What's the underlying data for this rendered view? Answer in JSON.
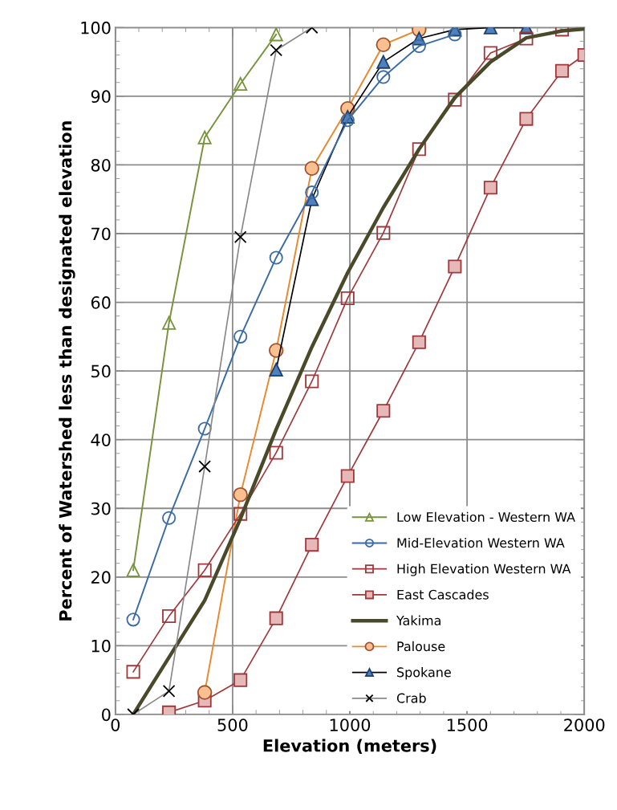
{
  "chart_data": {
    "type": "line",
    "xlabel": "Elevation (meters)",
    "ylabel": "Percent of Watershed less than designated elevation",
    "xlim": [
      0,
      2000
    ],
    "xticks": [
      0,
      500,
      1000,
      1500,
      2000
    ],
    "ylim": [
      0,
      100
    ],
    "yticks": [
      0,
      10,
      20,
      30,
      40,
      50,
      60,
      70,
      80,
      90,
      100
    ],
    "grid": true,
    "legend": "bottom right",
    "series": [
      {
        "name": "Low Elevation - Western WA",
        "color": "#77933c",
        "marker": "triangle",
        "x": [
          76.2,
          228.6,
          381,
          533.4,
          685.8
        ],
        "values": [
          21,
          57,
          84,
          91.8,
          99
        ]
      },
      {
        "name": "Mid-Elevation Western WA",
        "color": "#3a6ba5",
        "marker": "circle",
        "x": [
          76.2,
          228.6,
          381,
          533.4,
          685.8,
          838.2,
          990.6,
          1143,
          1295.4,
          1447.8
        ],
        "values": [
          13.8,
          28.6,
          41.6,
          55,
          66.5,
          76,
          86.5,
          92.8,
          97.3,
          99
        ]
      },
      {
        "name": "High Elevation Western WA",
        "color": "#a0373a",
        "marker": "square",
        "x": [
          76.2,
          228.6,
          381,
          533.4,
          685.8,
          838.2,
          990.6,
          1143,
          1295.4,
          1447.8,
          1600.2,
          1752.6,
          1905
        ],
        "values": [
          6.2,
          14.3,
          21,
          29.2,
          38.1,
          48.5,
          60.6,
          70.1,
          82.3,
          89.5,
          96.3,
          98.4,
          99.7
        ]
      },
      {
        "name": "East Cascades",
        "color": "#a0373a",
        "marker": "square",
        "x": [
          228.6,
          381,
          533.4,
          685.8,
          838.2,
          990.6,
          1143,
          1295.4,
          1447.8,
          1600.2,
          1752.6,
          1905,
          2000
        ],
        "values": [
          0.3,
          2,
          5,
          14,
          24.7,
          34.7,
          44.2,
          54.2,
          65.2,
          76.7,
          86.7,
          93.7,
          96
        ]
      },
      {
        "name": "Yakima",
        "color": "#4a4a2a",
        "marker": "none",
        "x": [
          76.2,
          228.6,
          381,
          533.4,
          685.8,
          838.2,
          990.6,
          1143,
          1295.4,
          1447.8,
          1600.2,
          1752.6,
          1905,
          2000
        ],
        "values": [
          0,
          8.3,
          16.6,
          28.5,
          41.5,
          53.5,
          64.3,
          73.8,
          82.3,
          89.8,
          95,
          98.5,
          99.5,
          99.8
        ]
      },
      {
        "name": "Palouse",
        "color": "#e8892e",
        "marker": "circle",
        "x": [
          381,
          533.4,
          685.8,
          838.2,
          990.6,
          1143,
          1295.4
        ],
        "values": [
          3.2,
          32,
          53,
          79.5,
          88.2,
          97.5,
          99.7
        ]
      },
      {
        "name": "Spokane",
        "color": "#000000",
        "marker": "triangle",
        "x": [
          685.8,
          838.2,
          990.6,
          1143,
          1295.4,
          1447.8,
          1600.2,
          1752.6
        ],
        "values": [
          50.2,
          75,
          87,
          95,
          98.4,
          99.7,
          100,
          100
        ]
      },
      {
        "name": "Crab",
        "color": "#888888",
        "marker": "cross",
        "x": [
          76.2,
          228.6,
          381,
          533.4,
          685.8,
          838.2
        ],
        "values": [
          0,
          3.4,
          36.1,
          69.5,
          96.7,
          100
        ]
      }
    ]
  }
}
